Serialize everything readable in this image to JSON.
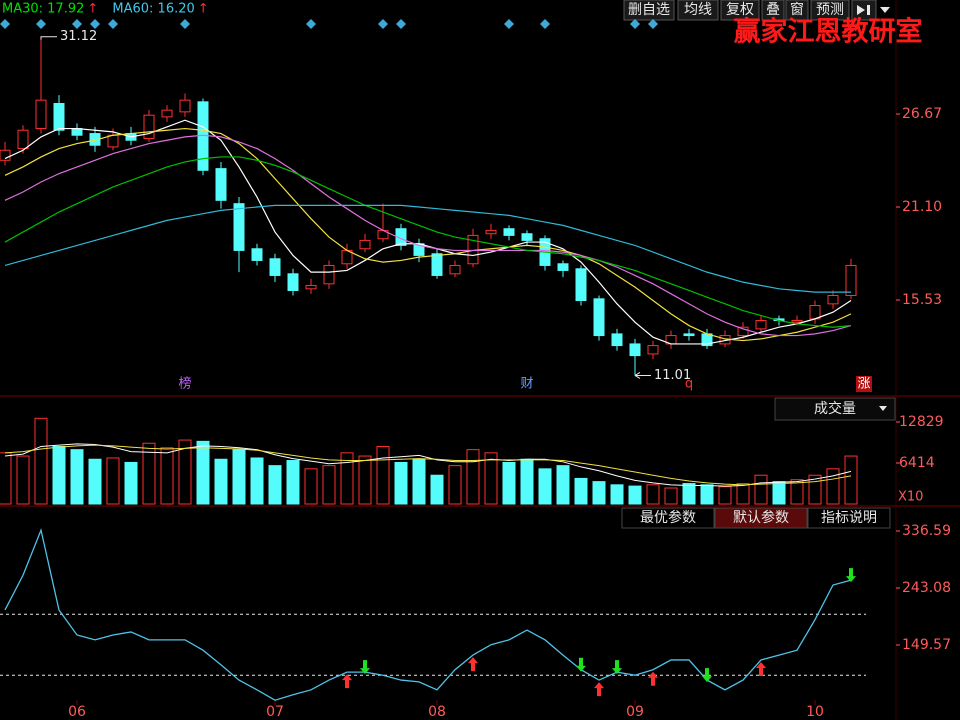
{
  "toolbar": {
    "buttons": [
      "删自选",
      "均线",
      "复权",
      "叠",
      "窗",
      "预测"
    ]
  },
  "watermark": "赢家江恩教研室",
  "volume_selector": "成交量",
  "tabs": [
    "最优参数",
    "默认参数",
    "指标说明"
  ],
  "active_tab": "默认参数",
  "chart_data": [
    {
      "type": "candlestick",
      "legend": [
        {
          "text": "MA30: 17.92",
          "arrow": "↑",
          "color": "#00e000"
        },
        {
          "text": "MA60: 16.20",
          "arrow": "↑",
          "color": "#40c8e8"
        }
      ],
      "up_color": "#ff3030",
      "down_color": "#54fcfc",
      "open": [
        23.9,
        24.6,
        25.8,
        27.3,
        25.8,
        25.5,
        24.7,
        25.5,
        25.2,
        26.5,
        26.8,
        27.4,
        23.4,
        21.3,
        18.6,
        18.0,
        17.1,
        16.2,
        16.5,
        17.7,
        18.6,
        19.2,
        19.8,
        18.9,
        18.3,
        17.1,
        17.7,
        19.5,
        19.8,
        19.5,
        19.2,
        17.7,
        17.4,
        15.6,
        13.5,
        12.9,
        12.3,
        12.9,
        13.5,
        13.5,
        12.9,
        13.4,
        13.8,
        14.4,
        14.2,
        14.4,
        15.3,
        15.8
      ],
      "high": [
        25.0,
        26.0,
        31.12,
        27.8,
        26.1,
        25.9,
        25.8,
        25.9,
        26.9,
        27.2,
        27.9,
        27.6,
        23.8,
        21.7,
        18.9,
        18.3,
        17.4,
        16.8,
        17.9,
        18.9,
        19.5,
        21.3,
        20.1,
        19.2,
        18.6,
        17.9,
        19.8,
        20.1,
        20.0,
        19.7,
        19.4,
        17.9,
        17.6,
        15.8,
        13.8,
        13.2,
        13.1,
        13.7,
        13.8,
        13.8,
        13.7,
        14.2,
        14.6,
        14.6,
        14.6,
        15.5,
        16.1,
        18.0
      ],
      "low": [
        23.6,
        24.3,
        25.5,
        25.4,
        25.1,
        24.4,
        24.5,
        24.8,
        25.0,
        26.2,
        26.5,
        23.0,
        21.0,
        17.2,
        17.6,
        16.6,
        15.8,
        15.9,
        16.2,
        17.4,
        18.4,
        19.0,
        18.5,
        17.8,
        16.8,
        16.9,
        17.5,
        19.2,
        19.1,
        18.8,
        17.3,
        16.9,
        15.2,
        13.1,
        12.5,
        11.01,
        12.0,
        12.6,
        13.1,
        12.6,
        12.7,
        13.2,
        13.6,
        14.0,
        14.0,
        14.1,
        15.0,
        15.6
      ],
      "close": [
        24.5,
        25.7,
        27.5,
        25.7,
        25.4,
        24.8,
        25.4,
        25.1,
        26.6,
        26.9,
        27.5,
        23.3,
        21.5,
        18.5,
        17.9,
        17.0,
        16.1,
        16.4,
        17.6,
        18.5,
        19.1,
        19.7,
        18.8,
        18.2,
        17.0,
        17.6,
        19.4,
        19.7,
        19.4,
        19.1,
        17.6,
        17.3,
        15.5,
        13.4,
        12.8,
        12.2,
        12.8,
        13.4,
        13.4,
        12.8,
        13.4,
        13.9,
        14.3,
        14.3,
        14.3,
        15.2,
        15.8,
        17.6
      ],
      "lines": [
        {
          "color": "#ffffff",
          "values": [
            24.0,
            24.5,
            25.3,
            25.8,
            25.8,
            25.7,
            25.6,
            25.3,
            25.5,
            25.9,
            26.3,
            25.9,
            25.1,
            23.5,
            21.7,
            19.6,
            18.2,
            17.2,
            17.2,
            17.3,
            17.9,
            18.6,
            18.9,
            18.9,
            18.6,
            18.3,
            18.2,
            18.4,
            18.7,
            19.0,
            19.0,
            18.6,
            17.8,
            16.6,
            15.3,
            14.2,
            13.3,
            12.9,
            12.9,
            12.9,
            13.1,
            13.3,
            13.6,
            13.9,
            14.1,
            14.4,
            14.8,
            15.5
          ]
        },
        {
          "color": "#f0e040",
          "values": [
            23.0,
            23.5,
            24.1,
            24.6,
            24.9,
            25.1,
            25.4,
            25.5,
            25.6,
            25.7,
            25.8,
            25.7,
            25.5,
            24.9,
            24.0,
            22.8,
            21.6,
            20.4,
            19.3,
            18.5,
            18.0,
            17.8,
            17.9,
            18.1,
            18.2,
            18.3,
            18.5,
            18.6,
            18.7,
            18.8,
            18.7,
            18.5,
            18.2,
            17.7,
            17.0,
            16.3,
            15.5,
            14.7,
            14.0,
            13.5,
            13.2,
            13.1,
            13.2,
            13.4,
            13.6,
            13.9,
            14.2,
            14.7
          ]
        },
        {
          "color": "#e070e0",
          "values": [
            21.5,
            22.0,
            22.6,
            23.1,
            23.5,
            23.9,
            24.3,
            24.6,
            24.9,
            25.1,
            25.3,
            25.4,
            25.3,
            25.0,
            24.6,
            24.0,
            23.3,
            22.5,
            21.7,
            21.0,
            20.3,
            19.7,
            19.2,
            18.8,
            18.6,
            18.5,
            18.5,
            18.5,
            18.5,
            18.5,
            18.5,
            18.4,
            18.2,
            17.9,
            17.5,
            17.0,
            16.5,
            15.9,
            15.3,
            14.7,
            14.2,
            13.8,
            13.5,
            13.4,
            13.4,
            13.5,
            13.7,
            14.0
          ]
        },
        {
          "color": "#00c000",
          "values": [
            19.0,
            19.6,
            20.2,
            20.8,
            21.3,
            21.8,
            22.3,
            22.7,
            23.1,
            23.5,
            23.8,
            24.0,
            24.1,
            24.1,
            23.9,
            23.6,
            23.2,
            22.7,
            22.2,
            21.7,
            21.2,
            20.8,
            20.4,
            20.0,
            19.6,
            19.3,
            19.1,
            18.9,
            18.7,
            18.5,
            18.4,
            18.3,
            18.1,
            17.9,
            17.6,
            17.3,
            16.9,
            16.5,
            16.1,
            15.7,
            15.3,
            14.9,
            14.6,
            14.3,
            14.1,
            14.0,
            13.9,
            14.0
          ]
        },
        {
          "color": "#30b8d8",
          "values": [
            17.6,
            17.9,
            18.2,
            18.5,
            18.8,
            19.1,
            19.4,
            19.7,
            20.0,
            20.3,
            20.5,
            20.7,
            20.9,
            21.0,
            21.1,
            21.2,
            21.2,
            21.2,
            21.2,
            21.2,
            21.2,
            21.2,
            21.2,
            21.1,
            21.0,
            20.9,
            20.8,
            20.7,
            20.6,
            20.4,
            20.2,
            20.0,
            19.7,
            19.4,
            19.1,
            18.8,
            18.4,
            18.0,
            17.6,
            17.2,
            16.9,
            16.6,
            16.4,
            16.2,
            16.1,
            16.0,
            16.0,
            16.0
          ]
        }
      ],
      "ylim": [
        9.84,
        33.5
      ],
      "yticks": [
        15.53,
        {
          "value": 21.1,
          "label": "21.10"
        },
        26.67
      ],
      "annotations": [
        {
          "index": 2,
          "value": 31.12
        },
        {
          "index": 35,
          "value": 11.01
        }
      ],
      "event_labels": [
        {
          "index": 10,
          "text": "榜",
          "color": "#c060ff"
        },
        {
          "index": 29,
          "text": "财",
          "color": "#60a0ff"
        },
        {
          "index": 38,
          "text": "q",
          "color": "#ff3030"
        },
        {
          "text": "涨",
          "color": "#ffffff"
        }
      ],
      "top_markers": [
        0,
        2,
        4,
        5,
        6,
        10,
        17,
        21,
        22,
        28,
        30,
        35,
        36
      ],
      "marker_color": "#3fa9d8"
    },
    {
      "type": "bar",
      "values": [
        8000,
        7500,
        13400,
        9000,
        8500,
        7000,
        7200,
        6500,
        9500,
        8800,
        10000,
        9800,
        7000,
        8500,
        7200,
        6000,
        6800,
        5500,
        6000,
        8000,
        7500,
        9000,
        6500,
        7000,
        4500,
        6000,
        8500,
        8000,
        6500,
        7000,
        5500,
        6000,
        4000,
        3500,
        3000,
        2800,
        3000,
        2500,
        3200,
        3000,
        2700,
        3200,
        4500,
        3500,
        3800,
        4500,
        5500,
        7500
      ],
      "lines": [
        {
          "color": "#ffffff",
          "values": [
            7500,
            7800,
            9000,
            9200,
            9400,
            9300,
            8900,
            8200,
            8100,
            8000,
            8700,
            9100,
            9000,
            8800,
            8500,
            7700,
            7100,
            6700,
            6300,
            6500,
            6800,
            7200,
            7400,
            7600,
            6900,
            6600,
            6600,
            7000,
            6800,
            7000,
            7000,
            6600,
            5800,
            5200,
            4400,
            3700,
            3300,
            3000,
            2900,
            2900,
            2800,
            2900,
            3300,
            3400,
            3500,
            3900,
            4400,
            5100
          ]
        },
        {
          "color": "#f0e040",
          "values": [
            8000,
            8200,
            8600,
            8900,
            9100,
            9200,
            9100,
            8900,
            8700,
            8600,
            8700,
            8800,
            8700,
            8600,
            8400,
            8000,
            7600,
            7200,
            6900,
            6800,
            6800,
            6900,
            7000,
            7100,
            7000,
            6800,
            6800,
            6900,
            6900,
            6900,
            6900,
            6800,
            6400,
            6000,
            5500,
            5000,
            4500,
            4000,
            3600,
            3300,
            3100,
            3000,
            3100,
            3200,
            3300,
            3500,
            3900,
            4400
          ]
        }
      ],
      "ylim": [
        0,
        16580
      ],
      "yticks": [
        6414,
        12829
      ],
      "unit_label": "X10"
    },
    {
      "type": "line",
      "categories": [
        null,
        null,
        null,
        null,
        "06",
        null,
        null,
        null,
        null,
        null,
        null,
        null,
        null,
        null,
        null,
        "07",
        null,
        null,
        null,
        null,
        null,
        null,
        null,
        null,
        "08",
        null,
        null,
        null,
        null,
        null,
        null,
        null,
        null,
        null,
        null,
        "09",
        null,
        null,
        null,
        null,
        null,
        null,
        null,
        null,
        null,
        "10",
        null,
        null
      ],
      "values": [
        207,
        264,
        338,
        207,
        166,
        158,
        166,
        171,
        158,
        158,
        158,
        141,
        117,
        92,
        76,
        59,
        68,
        76,
        92,
        105,
        105,
        100,
        92,
        89,
        76,
        109,
        133,
        150,
        158,
        174,
        158,
        133,
        109,
        92,
        105,
        100,
        109,
        125,
        125,
        92,
        76,
        92,
        125,
        133,
        141,
        191,
        248,
        256
      ],
      "color": "#4fc3e8",
      "ylim": [
        26.5,
        341.5
      ],
      "yticks": [
        149.57,
        243.08,
        336.59
      ],
      "hlines": [
        100,
        200
      ],
      "signals": [
        {
          "index": 19,
          "dir": "up"
        },
        {
          "index": 26,
          "dir": "up"
        },
        {
          "index": 33,
          "dir": "up"
        },
        {
          "index": 36,
          "dir": "up"
        },
        {
          "index": 42,
          "dir": "up"
        },
        {
          "index": 20,
          "dir": "down"
        },
        {
          "index": 32,
          "dir": "down"
        },
        {
          "index": 34,
          "dir": "down"
        },
        {
          "index": 39,
          "dir": "down"
        },
        {
          "index": 47,
          "dir": "down"
        }
      ]
    }
  ]
}
